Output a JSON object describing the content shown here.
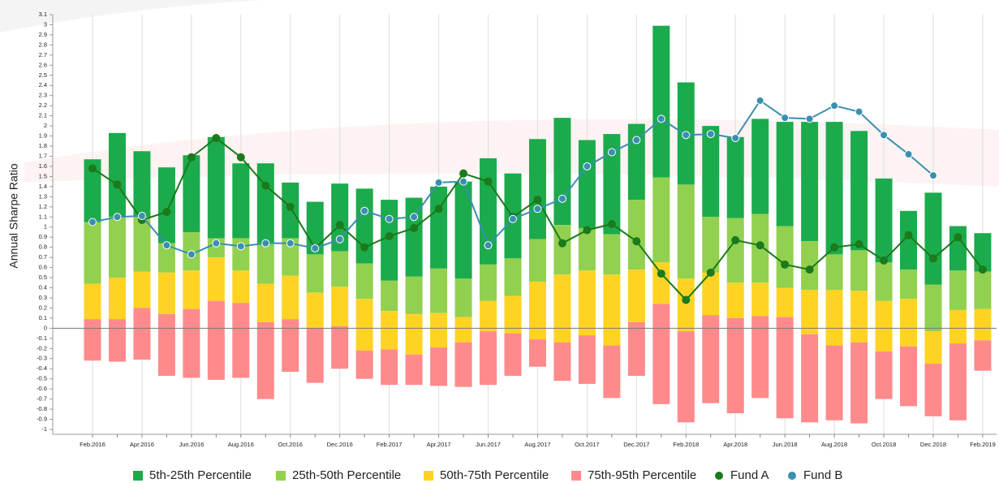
{
  "chart_data": {
    "type": "bar",
    "y_label": "Annual Sharpe Ratio",
    "categories": [
      "Feb.2016",
      null,
      "Apr.2016",
      null,
      "Jun.2016",
      null,
      "Aug.2016",
      null,
      "Oct.2016",
      null,
      "Dec.2016",
      null,
      "Feb.2017",
      null,
      "Apr.2017",
      null,
      "Jun.2017",
      null,
      "Aug.2017",
      null,
      "Oct.2017",
      null,
      "Dec.2017",
      null,
      "Feb.2018",
      null,
      "Apr.2018",
      null,
      "Jun.2018",
      null,
      "Aug.2018",
      null,
      "Oct.2018",
      null,
      "Dec.2018",
      null,
      "Feb.2019"
    ],
    "ylim": [
      -1,
      3.1
    ],
    "yticks": [
      -1,
      -0.9,
      -0.8,
      -0.7,
      -0.6,
      -0.5,
      -0.4,
      -0.3,
      -0.2,
      -0.1,
      0,
      0.1,
      0.2,
      0.3,
      0.4,
      0.5,
      0.6,
      0.7,
      0.8,
      0.9,
      1,
      1.1,
      1.2,
      1.3,
      1.4,
      1.5,
      1.6,
      1.7,
      1.8,
      1.9,
      2,
      2.1,
      2.2,
      2.3,
      2.4,
      2.5,
      2.6,
      2.7,
      2.8,
      2.9,
      3,
      3.1
    ],
    "grid": "x",
    "series": [
      {
        "name": "5th-25th Percentile",
        "color": "#1bab4c",
        "values": [
          [
            1.05,
            1.67
          ],
          [
            1.1,
            1.93
          ],
          [
            1.1,
            1.75
          ],
          [
            0.84,
            1.59
          ],
          [
            0.95,
            1.71
          ],
          [
            0.89,
            1.89
          ],
          [
            0.89,
            1.63
          ],
          [
            0.84,
            1.63
          ],
          [
            0.89,
            1.44
          ],
          [
            0.73,
            1.25
          ],
          [
            0.76,
            1.43
          ],
          [
            0.64,
            1.38
          ],
          [
            0.47,
            1.27
          ],
          [
            0.51,
            1.29
          ],
          [
            0.59,
            1.4
          ],
          [
            0.49,
            1.45
          ],
          [
            0.63,
            1.68
          ],
          [
            0.69,
            1.53
          ],
          [
            0.88,
            1.87
          ],
          [
            1.02,
            2.08
          ],
          [
            0.99,
            1.86
          ],
          [
            0.93,
            1.92
          ],
          [
            1.27,
            2.02
          ],
          [
            1.49,
            2.99
          ],
          [
            1.42,
            2.43
          ],
          [
            1.1,
            2.0
          ],
          [
            1.09,
            1.89
          ],
          [
            1.13,
            2.07
          ],
          [
            1.01,
            2.04
          ],
          [
            0.86,
            2.04
          ],
          [
            0.73,
            2.04
          ],
          [
            0.77,
            1.95
          ],
          [
            0.65,
            1.48
          ],
          [
            0.58,
            1.16
          ],
          [
            0.43,
            1.34
          ],
          [
            0.57,
            1.01
          ],
          [
            0.56,
            0.94
          ]
        ]
      },
      {
        "name": "25th-50th Percentile",
        "color": "#92d050",
        "values": [
          [
            0.44,
            1.05
          ],
          [
            0.5,
            1.1
          ],
          [
            0.56,
            1.1
          ],
          [
            0.55,
            0.84
          ],
          [
            0.57,
            0.95
          ],
          [
            0.7,
            0.89
          ],
          [
            0.57,
            0.89
          ],
          [
            0.44,
            0.84
          ],
          [
            0.52,
            0.89
          ],
          [
            0.35,
            0.73
          ],
          [
            0.41,
            0.76
          ],
          [
            0.29,
            0.64
          ],
          [
            0.17,
            0.47
          ],
          [
            0.14,
            0.51
          ],
          [
            0.15,
            0.59
          ],
          [
            0.11,
            0.49
          ],
          [
            0.27,
            0.63
          ],
          [
            0.32,
            0.69
          ],
          [
            0.46,
            0.88
          ],
          [
            0.53,
            1.02
          ],
          [
            0.57,
            0.99
          ],
          [
            0.53,
            0.93
          ],
          [
            0.58,
            1.27
          ],
          [
            0.65,
            1.49
          ],
          [
            0.49,
            1.42
          ],
          [
            0.55,
            1.1
          ],
          [
            0.45,
            1.09
          ],
          [
            0.45,
            1.13
          ],
          [
            0.4,
            1.01
          ],
          [
            0.38,
            0.86
          ],
          [
            0.38,
            0.73
          ],
          [
            0.37,
            0.77
          ],
          [
            0.27,
            0.65
          ],
          [
            0.29,
            0.58
          ],
          [
            -0.03,
            0.43
          ],
          [
            0.18,
            0.57
          ],
          [
            0.19,
            0.56
          ]
        ]
      },
      {
        "name": "50th-75th Percentile",
        "color": "#ffd324",
        "values": [
          [
            0.09,
            0.44
          ],
          [
            0.09,
            0.5
          ],
          [
            0.2,
            0.56
          ],
          [
            0.14,
            0.55
          ],
          [
            0.19,
            0.57
          ],
          [
            0.27,
            0.7
          ],
          [
            0.25,
            0.57
          ],
          [
            0.06,
            0.44
          ],
          [
            0.09,
            0.52
          ],
          [
            0.0,
            0.35
          ],
          [
            0.02,
            0.41
          ],
          [
            -0.22,
            0.29
          ],
          [
            -0.21,
            0.17
          ],
          [
            -0.26,
            0.14
          ],
          [
            -0.19,
            0.15
          ],
          [
            -0.14,
            0.11
          ],
          [
            -0.03,
            0.27
          ],
          [
            -0.05,
            0.32
          ],
          [
            -0.11,
            0.46
          ],
          [
            -0.14,
            0.53
          ],
          [
            -0.07,
            0.57
          ],
          [
            -0.17,
            0.53
          ],
          [
            0.06,
            0.58
          ],
          [
            0.24,
            0.65
          ],
          [
            -0.03,
            0.49
          ],
          [
            0.13,
            0.55
          ],
          [
            0.1,
            0.45
          ],
          [
            0.12,
            0.45
          ],
          [
            0.11,
            0.4
          ],
          [
            -0.06,
            0.38
          ],
          [
            -0.17,
            0.38
          ],
          [
            -0.14,
            0.37
          ],
          [
            -0.23,
            0.27
          ],
          [
            -0.18,
            0.29
          ],
          [
            -0.35,
            -0.03
          ],
          [
            -0.15,
            0.18
          ],
          [
            -0.12,
            0.19
          ]
        ]
      },
      {
        "name": "75th-95th Percentile",
        "color": "#ff8a8c",
        "values": [
          [
            -0.32,
            0.09
          ],
          [
            -0.33,
            0.09
          ],
          [
            -0.31,
            0.2
          ],
          [
            -0.47,
            0.14
          ],
          [
            -0.49,
            0.19
          ],
          [
            -0.51,
            0.27
          ],
          [
            -0.49,
            0.25
          ],
          [
            -0.7,
            0.06
          ],
          [
            -0.43,
            0.09
          ],
          [
            -0.54,
            0.0
          ],
          [
            -0.4,
            0.02
          ],
          [
            -0.5,
            -0.22
          ],
          [
            -0.56,
            -0.21
          ],
          [
            -0.56,
            -0.26
          ],
          [
            -0.57,
            -0.19
          ],
          [
            -0.58,
            -0.14
          ],
          [
            -0.56,
            -0.03
          ],
          [
            -0.47,
            -0.05
          ],
          [
            -0.38,
            -0.11
          ],
          [
            -0.52,
            -0.14
          ],
          [
            -0.55,
            -0.07
          ],
          [
            -0.69,
            -0.17
          ],
          [
            -0.47,
            0.06
          ],
          [
            -0.75,
            0.24
          ],
          [
            -0.93,
            -0.03
          ],
          [
            -0.74,
            0.13
          ],
          [
            -0.84,
            0.1
          ],
          [
            -0.69,
            0.12
          ],
          [
            -0.89,
            0.11
          ],
          [
            -0.93,
            -0.06
          ],
          [
            -0.91,
            -0.17
          ],
          [
            -0.94,
            -0.14
          ],
          [
            -0.7,
            -0.23
          ],
          [
            -0.77,
            -0.18
          ],
          [
            -0.87,
            -0.35
          ],
          [
            -0.91,
            -0.15
          ],
          [
            -0.42,
            -0.12
          ]
        ]
      },
      {
        "name": "Fund A",
        "type": "line",
        "color": "#1b7a1b",
        "values": [
          1.58,
          1.42,
          1.07,
          1.15,
          1.69,
          1.88,
          1.69,
          1.41,
          1.2,
          0.79,
          1.02,
          0.8,
          0.91,
          0.99,
          1.18,
          1.53,
          1.45,
          1.1,
          1.27,
          0.84,
          0.97,
          1.03,
          0.86,
          0.54,
          0.28,
          0.55,
          0.87,
          0.82,
          0.63,
          0.58,
          0.8,
          0.83,
          0.67,
          0.92,
          0.69,
          0.9,
          0.58
        ]
      },
      {
        "name": "Fund B",
        "type": "line",
        "color": "#3a8fb0",
        "values": [
          1.05,
          1.1,
          1.11,
          0.82,
          0.73,
          0.84,
          0.81,
          0.84,
          0.84,
          0.79,
          0.88,
          1.16,
          1.08,
          1.1,
          1.44,
          1.45,
          0.82,
          1.08,
          1.18,
          1.28,
          1.6,
          1.74,
          1.86,
          2.07,
          1.91,
          1.92,
          1.88,
          2.25,
          2.08,
          2.07,
          2.2,
          2.14,
          1.91,
          1.72,
          1.51,
          null,
          null
        ]
      }
    ]
  }
}
